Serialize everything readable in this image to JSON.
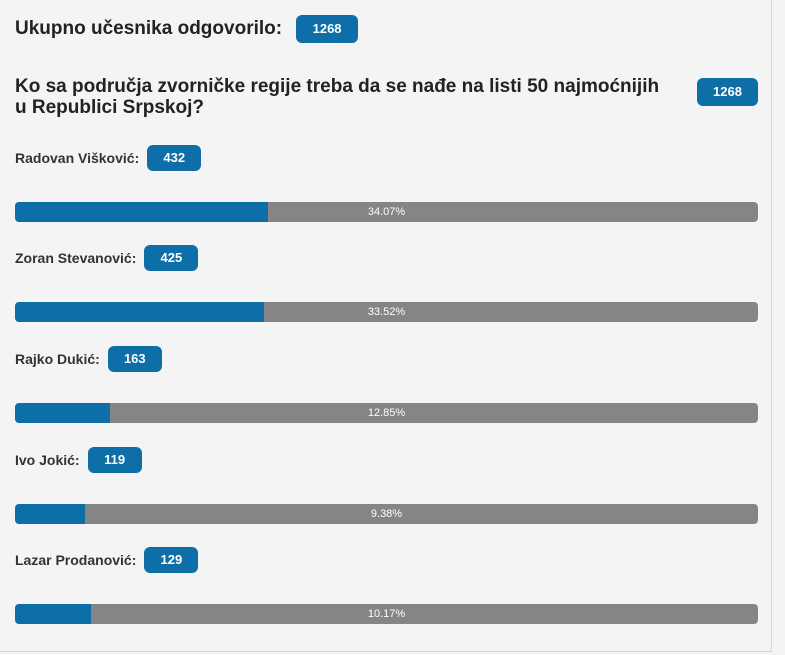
{
  "poll": {
    "total_label": "Ukupno učesnika odgovorilo:",
    "total_count": "1268",
    "question": "Ko sa područja zvorničke regije treba da se nađe na listi 50 najmoćnijih u Republici Srpskoj?",
    "question_count": "1268",
    "colors": {
      "accent": "#0d6ea8",
      "track": "#858585",
      "background": "#f4f4f4"
    },
    "options": [
      {
        "name": "Radovan Višković:",
        "votes": "432",
        "percent_label": "34.07%",
        "fraction": 0.3407
      },
      {
        "name": "Zoran Stevanović:",
        "votes": "425",
        "percent_label": "33.52%",
        "fraction": 0.3352
      },
      {
        "name": "Rajko Dukić:",
        "votes": "163",
        "percent_label": "12.85%",
        "fraction": 0.1285
      },
      {
        "name": "Ivo Jokić:",
        "votes": "119",
        "percent_label": "9.38%",
        "fraction": 0.0938
      },
      {
        "name": "Lazar Prodanović:",
        "votes": "129",
        "percent_label": "10.17%",
        "fraction": 0.1017
      }
    ]
  }
}
